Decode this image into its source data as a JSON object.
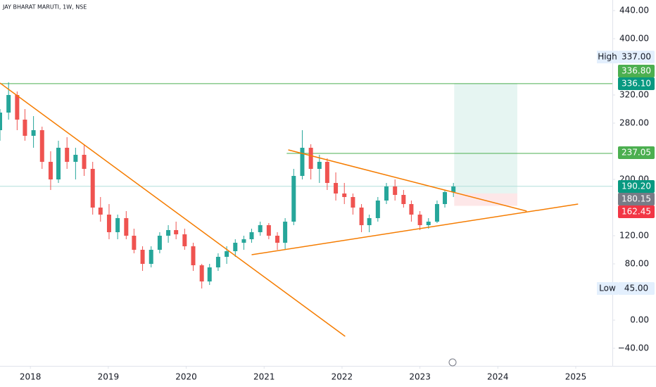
{
  "chart_data": {
    "type": "candlestick",
    "title": "JAY BHARAT MARUTI, 1W, NSE",
    "up_color": "#26a69a",
    "down_color": "#ef5350",
    "x": [
      2017.61,
      2017.72,
      2017.83,
      2017.93,
      2018.04,
      2018.15,
      2018.26,
      2018.36,
      2018.47,
      2018.58,
      2018.69,
      2018.8,
      2018.9,
      2019.01,
      2019.12,
      2019.23,
      2019.33,
      2019.44,
      2019.55,
      2019.66,
      2019.77,
      2019.87,
      2019.98,
      2020.09,
      2020.2,
      2020.3,
      2020.41,
      2020.52,
      2020.63,
      2020.74,
      2020.84,
      2020.95,
      2021.06,
      2021.17,
      2021.27,
      2021.38,
      2021.49,
      2021.6,
      2021.71,
      2021.81,
      2021.92,
      2022.03,
      2022.14,
      2022.25,
      2022.35,
      2022.46,
      2022.57,
      2022.68,
      2022.79,
      2022.89,
      2023.0,
      2023.11,
      2023.22,
      2023.32,
      2023.43
    ],
    "open": [
      270,
      295,
      320,
      285,
      262,
      270,
      225,
      200,
      245,
      225,
      235,
      215,
      160,
      150,
      125,
      145,
      120,
      100,
      80,
      100,
      120,
      128,
      122,
      105,
      78,
      55,
      75,
      90,
      98,
      110,
      115,
      125,
      135,
      120,
      110,
      140,
      205,
      245,
      215,
      225,
      195,
      180,
      175,
      160,
      135,
      145,
      170,
      190,
      178,
      165,
      150,
      135,
      140,
      165,
      182
    ],
    "high": [
      300,
      338,
      325,
      300,
      290,
      275,
      240,
      255,
      260,
      245,
      250,
      225,
      175,
      165,
      150,
      155,
      130,
      105,
      105,
      125,
      135,
      140,
      130,
      110,
      80,
      80,
      95,
      105,
      115,
      120,
      130,
      140,
      138,
      125,
      145,
      215,
      270,
      250,
      235,
      230,
      210,
      195,
      180,
      165,
      150,
      175,
      195,
      200,
      185,
      170,
      155,
      145,
      170,
      185,
      195
    ],
    "low": [
      255,
      285,
      270,
      255,
      245,
      215,
      185,
      195,
      215,
      200,
      205,
      150,
      140,
      115,
      115,
      115,
      95,
      70,
      75,
      95,
      110,
      115,
      100,
      70,
      45,
      50,
      70,
      80,
      90,
      100,
      110,
      120,
      115,
      100,
      100,
      135,
      200,
      200,
      195,
      185,
      170,
      165,
      150,
      125,
      125,
      140,
      165,
      170,
      160,
      140,
      128,
      130,
      138,
      160,
      175
    ],
    "close": [
      295,
      320,
      285,
      262,
      270,
      225,
      200,
      245,
      225,
      235,
      215,
      160,
      150,
      125,
      145,
      120,
      100,
      80,
      100,
      120,
      128,
      122,
      105,
      78,
      55,
      75,
      90,
      98,
      110,
      115,
      125,
      135,
      120,
      110,
      140,
      205,
      245,
      215,
      225,
      195,
      180,
      175,
      160,
      135,
      145,
      170,
      190,
      178,
      165,
      150,
      135,
      140,
      165,
      182,
      190
    ],
    "xlim": [
      2017.61,
      2025.47
    ],
    "xticks": [
      2018,
      2019,
      2020,
      2021,
      2022,
      2023,
      2024,
      2025
    ],
    "ylim": [
      -65,
      455
    ],
    "yticks": [
      {
        "value": -40,
        "label": "−40.00"
      },
      {
        "value": 0,
        "label": "0.00"
      },
      {
        "value": 80,
        "label": "80.00"
      },
      {
        "value": 120,
        "label": "120.00"
      },
      {
        "value": 200,
        "label": "200.00"
      },
      {
        "value": 280,
        "label": "280.00"
      },
      {
        "value": 320,
        "label": "320.00"
      },
      {
        "value": 400,
        "label": "400.00"
      },
      {
        "value": 440,
        "label": "440.00"
      }
    ],
    "price_labels": [
      {
        "caption": "High",
        "value": 337,
        "label": "337.00",
        "color": "#e3effd"
      },
      {
        "value": 336.8,
        "label": "336.80",
        "color": "#4caf50"
      },
      {
        "value": 336.1,
        "label": "336.10",
        "color": "#089981",
        "line_from": 2017.61,
        "line_color": "#4caf50"
      },
      {
        "value": 237.05,
        "label": "237.05",
        "color": "#4caf50",
        "line_from": 2021.29,
        "line_color": "#4caf50"
      },
      {
        "value": 190.2,
        "label": "190.20",
        "color": "#089981",
        "line_from": 2017.61,
        "line_color": "#b2dfdb"
      },
      {
        "value": 180.15,
        "label": "180.15",
        "color": "#787b86"
      },
      {
        "value": 162.45,
        "label": "162.45",
        "color": "#f23645"
      },
      {
        "caption": "Low",
        "value": 45,
        "label": "45.00",
        "color": "#e3effd"
      }
    ],
    "position": {
      "x_start": 2023.44,
      "x_end": 2024.25
    },
    "trendline_color": "#f57c00",
    "trendlines": [
      {
        "x": [
          2017.61,
          2022.04
        ],
        "y": [
          337,
          -23
        ]
      },
      {
        "x": [
          2021.31,
          2024.37
        ],
        "y": [
          242,
          155
        ]
      },
      {
        "x": [
          2020.84,
          2025.03
        ],
        "y": [
          93,
          165
        ]
      }
    ]
  }
}
